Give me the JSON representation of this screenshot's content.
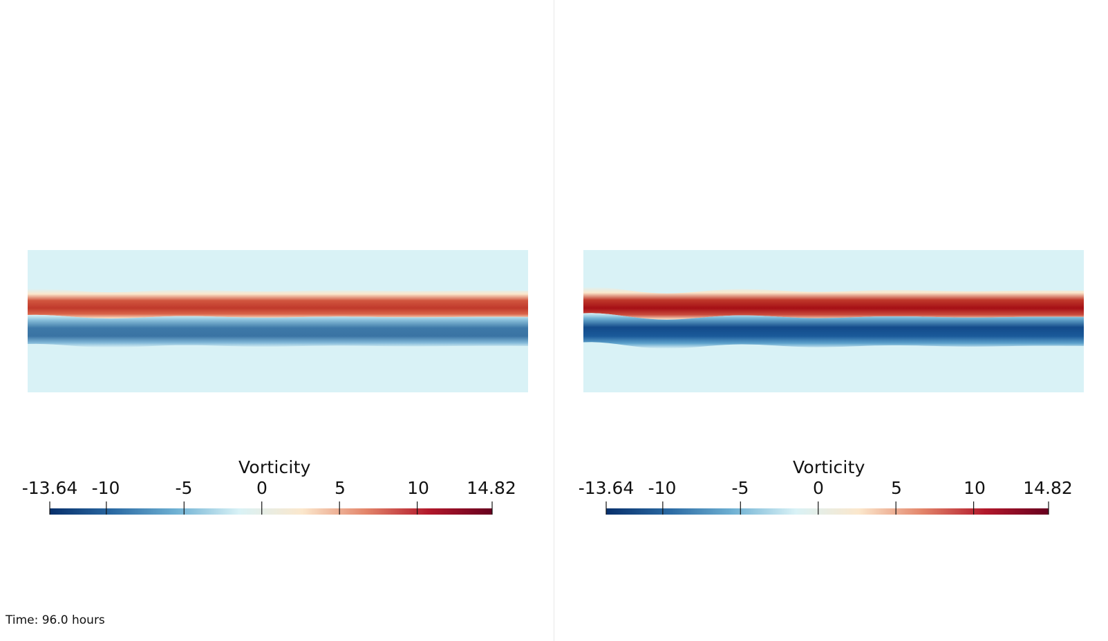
{
  "views": [
    {
      "id": "left",
      "colorbar": {
        "title": "Vorticity",
        "min_label": "-13.64",
        "max_label": "14.82",
        "ticks": [
          "-10",
          "-5",
          "0",
          "5",
          "10"
        ],
        "min": -13.64,
        "max": 14.82,
        "tick_values": [
          -10,
          -5,
          0,
          5,
          10
        ]
      },
      "amplitude": 0.55
    },
    {
      "id": "right",
      "colorbar": {
        "title": "Vorticity",
        "min_label": "-13.64",
        "max_label": "14.82",
        "ticks": [
          "-10",
          "-5",
          "0",
          "5",
          "10"
        ],
        "min": -13.64,
        "max": 14.82,
        "tick_values": [
          -10,
          -5,
          0,
          5,
          10
        ]
      },
      "amplitude": 1.0
    }
  ],
  "colormap": [
    "#08306b",
    "#2b6aa3",
    "#6fb1d3",
    "#d9f2f6",
    "#fbe7cc",
    "#e3856a",
    "#b2182b",
    "#67001f"
  ],
  "background_field_color": "#d9f2f6",
  "time_label": "Time: 96.0 hours"
}
